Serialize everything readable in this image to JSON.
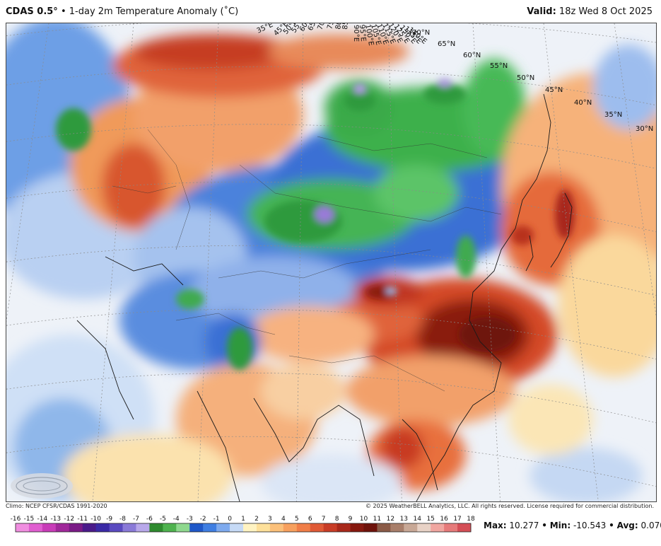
{
  "header": {
    "model": "CDAS 0.5°",
    "bullet": "•",
    "title": "1-day 2m Temperature Anomaly (˚C)",
    "valid_label": "Valid:",
    "valid_time": "18z Wed 8 Oct 2025"
  },
  "map": {
    "region": "Asia",
    "latitude_labels": [
      "70°N",
      "65°N",
      "60°N",
      "55°N",
      "50°N",
      "45°N",
      "40°N",
      "35°N",
      "30°N"
    ],
    "longitude_labels": [
      "35°E",
      "45°E",
      "50°E",
      "55°E",
      "60°E",
      "65°E",
      "70°E",
      "75°E",
      "80°E",
      "85°E",
      "90°E",
      "95°E",
      "100°E",
      "105°E",
      "110°E",
      "115°E",
      "120°E",
      "125°E",
      "130°E",
      "135°E",
      "140°E"
    ],
    "logo_text": "WeatherBELL"
  },
  "footer": {
    "climo": "Climo: NCEP CFSR/CDAS 1991-2020",
    "copyright": "© 2025 WeatherBELL Analytics, LLC. All rights reserved. License required for commercial distribution."
  },
  "colorbar": {
    "ticks": [
      "-16",
      "-15",
      "-14",
      "-13",
      "-12",
      "-11",
      "-10",
      "-9",
      "-8",
      "-7",
      "-6",
      "-5",
      "-4",
      "-3",
      "-2",
      "-1",
      "0",
      "1",
      "2",
      "3",
      "4",
      "5",
      "6",
      "7",
      "8",
      "9",
      "10",
      "11",
      "12",
      "13",
      "14",
      "15",
      "16",
      "17",
      "18"
    ],
    "colors": [
      "#f08ee0",
      "#e05ed0",
      "#c83cb8",
      "#a0289a",
      "#7a1a86",
      "#4a1a8a",
      "#3a2aa6",
      "#5a4ac0",
      "#8a7ad8",
      "#b8a8ea",
      "#2e8a2e",
      "#4eb24e",
      "#8ed88e",
      "#1f58c8",
      "#3f7ee2",
      "#7eaaee",
      "#c6daf6",
      "#fff3c2",
      "#fde09a",
      "#fbc07a",
      "#f7a05e",
      "#f07e48",
      "#e05a36",
      "#c83c26",
      "#a8281a",
      "#86180e",
      "#6e120a",
      "#8a5a46",
      "#a87e6a",
      "#c8a896",
      "#e8d2c6",
      "#f0a6a0",
      "#e67a7a",
      "#d44e56",
      "#b8283a"
    ]
  },
  "stats": {
    "max_label": "Max:",
    "max_value": "10.277",
    "min_label": "Min:",
    "min_value": "-10.543",
    "avg_label": "Avg:",
    "avg_value": "0.070",
    "sep": "•"
  }
}
